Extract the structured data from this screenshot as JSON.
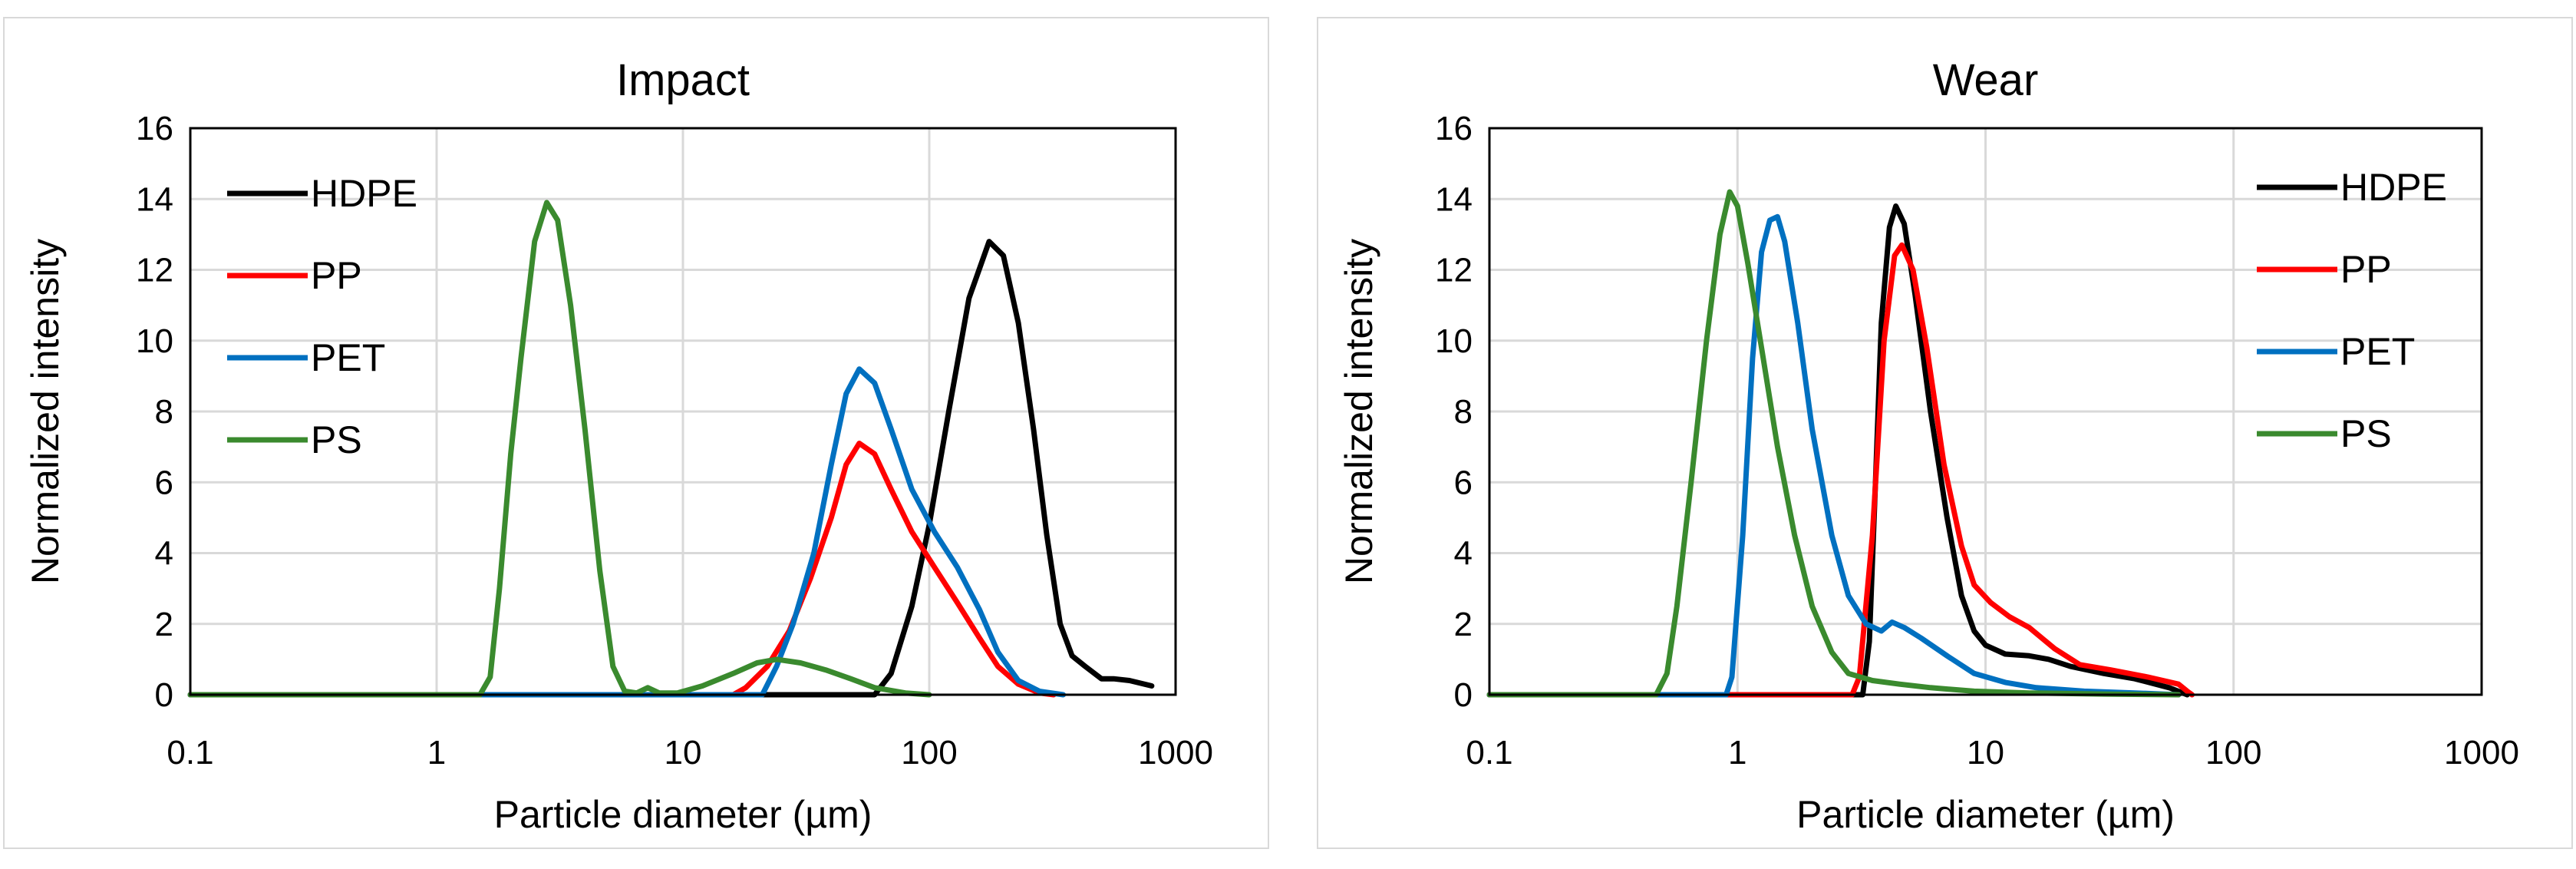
{
  "chart_data": [
    {
      "type": "line",
      "title": "Impact",
      "xlabel": "Particle diameter (µm)",
      "ylabel": "Normalized intensity",
      "xscale": "log",
      "xlim": [
        0.1,
        1000
      ],
      "ylim": [
        0,
        16
      ],
      "xticks": [
        "0.1",
        "1",
        "10",
        "100",
        "1000"
      ],
      "yticks": [
        "0",
        "2",
        "4",
        "6",
        "8",
        "10",
        "12",
        "14",
        "16"
      ],
      "grid": true,
      "legend_position": "top-left",
      "series": [
        {
          "name": "HDPE",
          "color": "#000000",
          "points": [
            [
              0.1,
              0
            ],
            [
              60,
              0
            ],
            [
              70,
              0.6
            ],
            [
              85,
              2.5
            ],
            [
              100,
              4.8
            ],
            [
              120,
              8
            ],
            [
              145,
              11.2
            ],
            [
              175,
              12.8
            ],
            [
              200,
              12.4
            ],
            [
              230,
              10.5
            ],
            [
              265,
              7.5
            ],
            [
              300,
              4.5
            ],
            [
              340,
              2
            ],
            [
              380,
              1.1
            ],
            [
              430,
              0.8
            ],
            [
              500,
              0.45
            ],
            [
              560,
              0.45
            ],
            [
              650,
              0.4
            ],
            [
              800,
              0.25
            ]
          ]
        },
        {
          "name": "PP",
          "color": "#ff0000",
          "points": [
            [
              0.1,
              0
            ],
            [
              16,
              0
            ],
            [
              18,
              0.2
            ],
            [
              22,
              0.8
            ],
            [
              27,
              1.8
            ],
            [
              33,
              3.3
            ],
            [
              40,
              5
            ],
            [
              46,
              6.5
            ],
            [
              52,
              7.1
            ],
            [
              60,
              6.8
            ],
            [
              70,
              5.8
            ],
            [
              85,
              4.6
            ],
            [
              105,
              3.6
            ],
            [
              130,
              2.6
            ],
            [
              160,
              1.6
            ],
            [
              190,
              0.8
            ],
            [
              230,
              0.3
            ],
            [
              280,
              0.05
            ],
            [
              320,
              0
            ]
          ]
        },
        {
          "name": "PET",
          "color": "#0070c0",
          "points": [
            [
              0.1,
              0
            ],
            [
              21,
              0
            ],
            [
              24,
              0.8
            ],
            [
              28,
              2
            ],
            [
              34,
              4
            ],
            [
              40,
              6.5
            ],
            [
              46,
              8.5
            ],
            [
              52,
              9.2
            ],
            [
              60,
              8.8
            ],
            [
              70,
              7.5
            ],
            [
              85,
              5.8
            ],
            [
              105,
              4.6
            ],
            [
              130,
              3.6
            ],
            [
              160,
              2.4
            ],
            [
              190,
              1.2
            ],
            [
              230,
              0.4
            ],
            [
              280,
              0.1
            ],
            [
              350,
              0
            ]
          ]
        },
        {
          "name": "PS",
          "color": "#3a8a2e",
          "points": [
            [
              0.1,
              0
            ],
            [
              1.5,
              0
            ],
            [
              1.65,
              0.5
            ],
            [
              1.8,
              3
            ],
            [
              2,
              6.8
            ],
            [
              2.2,
              9.5
            ],
            [
              2.5,
              12.8
            ],
            [
              2.8,
              13.9
            ],
            [
              3.1,
              13.4
            ],
            [
              3.5,
              11
            ],
            [
              4,
              7.5
            ],
            [
              4.6,
              3.5
            ],
            [
              5.2,
              0.8
            ],
            [
              5.8,
              0.1
            ],
            [
              6.5,
              0.05
            ],
            [
              7.2,
              0.2
            ],
            [
              8,
              0.05
            ],
            [
              9.5,
              0.05
            ],
            [
              12,
              0.25
            ],
            [
              16,
              0.6
            ],
            [
              20,
              0.9
            ],
            [
              24,
              1
            ],
            [
              30,
              0.9
            ],
            [
              38,
              0.7
            ],
            [
              48,
              0.45
            ],
            [
              60,
              0.2
            ],
            [
              80,
              0.05
            ],
            [
              100,
              0
            ]
          ]
        }
      ]
    },
    {
      "type": "line",
      "title": "Wear",
      "xlabel": "Particle diameter (µm)",
      "ylabel": "Normalized intensity",
      "xscale": "log",
      "xlim": [
        0.1,
        1000
      ],
      "ylim": [
        0,
        16
      ],
      "xticks": [
        "0.1",
        "1",
        "10",
        "100",
        "1000"
      ],
      "yticks": [
        "0",
        "2",
        "4",
        "6",
        "8",
        "10",
        "12",
        "14",
        "16"
      ],
      "grid": true,
      "legend_position": "top-right",
      "series": [
        {
          "name": "HDPE",
          "color": "#000000",
          "points": [
            [
              0.1,
              0
            ],
            [
              3.2,
              0
            ],
            [
              3.4,
              1.5
            ],
            [
              3.6,
              6
            ],
            [
              3.8,
              10.5
            ],
            [
              4.1,
              13.2
            ],
            [
              4.35,
              13.8
            ],
            [
              4.7,
              13.3
            ],
            [
              5.2,
              11.3
            ],
            [
              6,
              8
            ],
            [
              7,
              5
            ],
            [
              8,
              2.8
            ],
            [
              9,
              1.8
            ],
            [
              10,
              1.4
            ],
            [
              12,
              1.15
            ],
            [
              15,
              1.1
            ],
            [
              18,
              1
            ],
            [
              22,
              0.8
            ],
            [
              30,
              0.6
            ],
            [
              40,
              0.45
            ],
            [
              55,
              0.2
            ],
            [
              65,
              0
            ]
          ]
        },
        {
          "name": "PP",
          "color": "#ff0000",
          "points": [
            [
              0.1,
              0
            ],
            [
              2.9,
              0
            ],
            [
              3.1,
              0.5
            ],
            [
              3.5,
              4.5
            ],
            [
              3.9,
              10
            ],
            [
              4.3,
              12.4
            ],
            [
              4.6,
              12.7
            ],
            [
              5.1,
              12
            ],
            [
              5.8,
              9.8
            ],
            [
              6.8,
              6.5
            ],
            [
              8,
              4.2
            ],
            [
              9,
              3.1
            ],
            [
              10.5,
              2.6
            ],
            [
              12.5,
              2.2
            ],
            [
              15,
              1.9
            ],
            [
              19,
              1.3
            ],
            [
              24,
              0.85
            ],
            [
              32,
              0.7
            ],
            [
              45,
              0.5
            ],
            [
              60,
              0.3
            ],
            [
              65,
              0.1
            ],
            [
              68,
              0
            ]
          ]
        },
        {
          "name": "PET",
          "color": "#0070c0",
          "points": [
            [
              0.1,
              0
            ],
            [
              0.9,
              0
            ],
            [
              0.95,
              0.5
            ],
            [
              1.05,
              4.5
            ],
            [
              1.15,
              9.5
            ],
            [
              1.25,
              12.5
            ],
            [
              1.35,
              13.4
            ],
            [
              1.45,
              13.5
            ],
            [
              1.55,
              12.8
            ],
            [
              1.75,
              10.5
            ],
            [
              2,
              7.5
            ],
            [
              2.4,
              4.5
            ],
            [
              2.8,
              2.8
            ],
            [
              3.3,
              2
            ],
            [
              3.8,
              1.8
            ],
            [
              4.2,
              2.05
            ],
            [
              4.7,
              1.9
            ],
            [
              5.5,
              1.6
            ],
            [
              7,
              1.1
            ],
            [
              9,
              0.6
            ],
            [
              12,
              0.35
            ],
            [
              16,
              0.2
            ],
            [
              25,
              0.1
            ],
            [
              40,
              0.05
            ],
            [
              60,
              0
            ]
          ]
        },
        {
          "name": "PS",
          "color": "#3a8a2e",
          "points": [
            [
              0.1,
              0
            ],
            [
              0.47,
              0
            ],
            [
              0.52,
              0.6
            ],
            [
              0.57,
              2.5
            ],
            [
              0.65,
              6
            ],
            [
              0.75,
              10
            ],
            [
              0.85,
              13
            ],
            [
              0.93,
              14.2
            ],
            [
              1,
              13.8
            ],
            [
              1.1,
              12.2
            ],
            [
              1.25,
              9.8
            ],
            [
              1.45,
              7
            ],
            [
              1.7,
              4.5
            ],
            [
              2,
              2.5
            ],
            [
              2.4,
              1.2
            ],
            [
              2.8,
              0.6
            ],
            [
              3.5,
              0.4
            ],
            [
              4.5,
              0.3
            ],
            [
              6,
              0.2
            ],
            [
              9,
              0.1
            ],
            [
              15,
              0.05
            ],
            [
              30,
              0.02
            ],
            [
              60,
              0
            ]
          ]
        }
      ]
    }
  ]
}
